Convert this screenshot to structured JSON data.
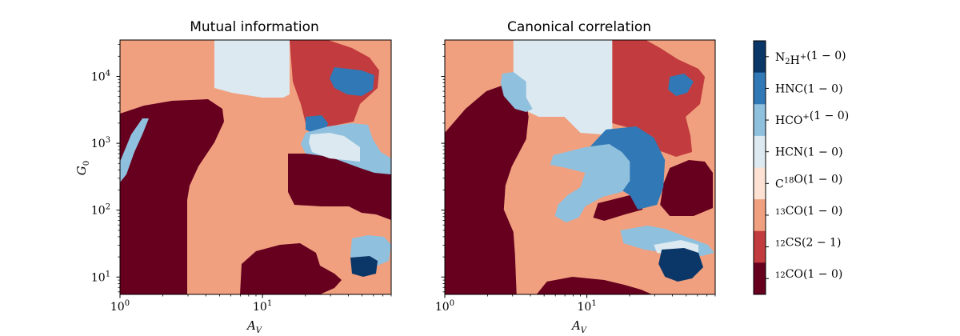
{
  "colors": {
    "12CO": "#67001f",
    "12CS": "#c23b3e",
    "13CO": "#f0a07f",
    "C18O": "#fde2d4",
    "HCN": "#dce9f1",
    "HCO+": "#8fc0de",
    "HNC": "#3178b6",
    "N2H+": "#0b3668"
  },
  "chart_data": [
    {
      "type": "heatmap",
      "title": "Mutual information",
      "xlabel": "A_V",
      "ylabel": "G_0",
      "x_scale": "log",
      "y_scale": "log",
      "xlim": [
        1,
        80
      ],
      "ylim": [
        5.5,
        35000
      ],
      "x_ticks": [
        {
          "base": "10",
          "exp": "0"
        },
        {
          "base": "10",
          "exp": "1"
        }
      ],
      "y_ticks": [
        {
          "base": "10",
          "exp": "1"
        },
        {
          "base": "10",
          "exp": "2"
        },
        {
          "base": "10",
          "exp": "3"
        },
        {
          "base": "10",
          "exp": "4"
        }
      ],
      "regions": [
        {
          "line": "13CO",
          "description": "central background"
        },
        {
          "line": "12CO",
          "description": "left, Av 1-3, G0 6-600"
        },
        {
          "line": "12CO",
          "description": "bottom center, Av 6-35, G0 5.5-30"
        },
        {
          "line": "12CO",
          "description": "right, Av 10-80, G0 60-400"
        },
        {
          "line": "HCN",
          "description": "top, Av 5-13, G0 5000-35000"
        },
        {
          "line": "12CS",
          "description": "top right, Av 15-40, G0 1200-35000"
        },
        {
          "line": "HNC",
          "description": "top right, Av 40-60, G0 3000-10000"
        },
        {
          "line": "HNC",
          "description": "Av 22-30, G0 1300-2500"
        },
        {
          "line": "HCO+",
          "description": "right, Av 20-80, G0 400-1300"
        },
        {
          "line": "HCN",
          "description": "right, Av 30-45, G0 600-1300"
        },
        {
          "line": "HCO+",
          "description": "bottom right, Av 40-65, G0 15-30"
        },
        {
          "line": "N2H+",
          "description": "bottom right, Av 40-48, G0 8-15"
        },
        {
          "line": "HCO+",
          "description": "left edge, Av 1-2, G0 100-3000"
        }
      ]
    },
    {
      "type": "heatmap",
      "title": "Canonical correlation",
      "xlabel": "A_V",
      "x_scale": "log",
      "y_scale": "log",
      "xlim": [
        1,
        80
      ],
      "ylim": [
        5.5,
        35000
      ],
      "x_ticks": [
        {
          "base": "10",
          "exp": "0"
        },
        {
          "base": "10",
          "exp": "1"
        }
      ],
      "regions": [
        {
          "line": "13CO",
          "description": "central background"
        },
        {
          "line": "12CO",
          "description": "left, Av 1-4, G0 5.5-1000"
        },
        {
          "line": "12CO",
          "description": "bottom center, Av 7-20, G0 5.5-8"
        },
        {
          "line": "12CO",
          "description": "right, Av 30-60, G0 80-300"
        },
        {
          "line": "12CO",
          "description": "center right, Av 12-30, G0 70-110"
        },
        {
          "line": "HCN",
          "description": "top, Av 5-13, G0 5000-35000"
        },
        {
          "line": "HCO+",
          "description": "Av 4-6, G0 2000-6000"
        },
        {
          "line": "12CS",
          "description": "top right, Av 15-40, G0 400-35000"
        },
        {
          "line": "HNC",
          "description": "top right, Av 40-55, G0 5000-10000"
        },
        {
          "line": "HNC",
          "description": "center right, Av 15-30, G0 150-1200"
        },
        {
          "line": "HCO+",
          "description": "center, Av 7-20, G0 80-700"
        },
        {
          "line": "HCO+",
          "description": "bottom right, Av 15-70, G0 20-35"
        },
        {
          "line": "HCN",
          "description": "bottom right, Av 30-60, G0 14-20"
        },
        {
          "line": "N2H+",
          "description": "bottom right, Av 35-70, G0 7-15"
        }
      ]
    }
  ],
  "legend": {
    "type": "colorbar",
    "entries": [
      {
        "id": "N2H+",
        "base": "N",
        "sub": "2",
        "base2": "H",
        "sup": "+",
        "transition": "(1 − 0)"
      },
      {
        "id": "HNC",
        "base": "HNC",
        "transition": "(1 − 0)"
      },
      {
        "id": "HCO+",
        "base": "HCO",
        "sup": "+",
        "transition": "(1 − 0)"
      },
      {
        "id": "HCN",
        "base": "HCN",
        "transition": "(1 − 0)"
      },
      {
        "id": "C18O",
        "base": "C",
        "sup_mid": "18",
        "base2": "O",
        "transition": "(1 − 0)"
      },
      {
        "id": "13CO",
        "pre_sup": "13",
        "base": "CO",
        "transition": "(1 − 0)"
      },
      {
        "id": "12CS",
        "pre_sup": "12",
        "base": "CS",
        "transition": "(2 − 1)"
      },
      {
        "id": "12CO",
        "pre_sup": "12",
        "base": "CO",
        "transition": "(1 − 0)"
      }
    ]
  }
}
